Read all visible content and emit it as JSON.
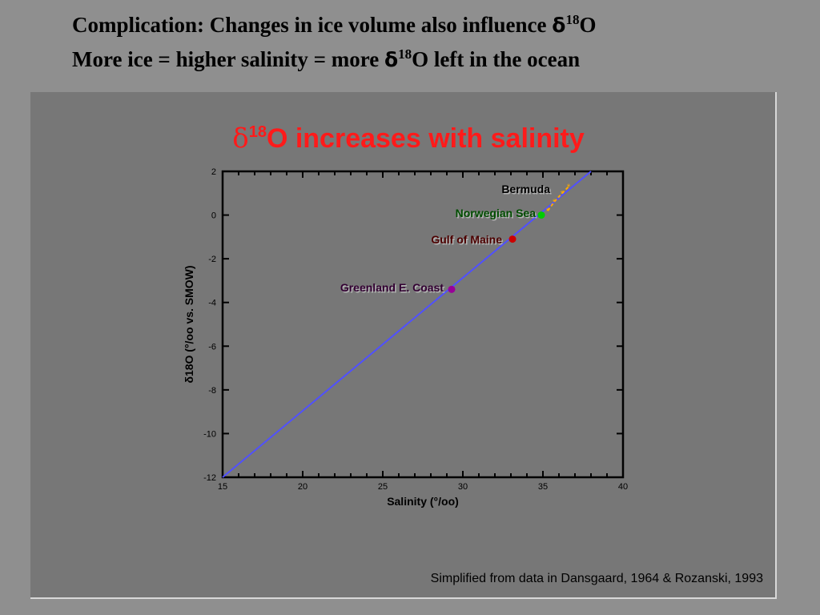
{
  "slide": {
    "title_line1_prefix": "Complication: Changes in ice volume also influence ",
    "title_line1_delta": "δ",
    "title_line1_sup": "18",
    "title_line1_suffix": "O",
    "title_line2_prefix": "More ice = higher salinity = more ",
    "title_line2_delta": "δ",
    "title_line2_sup": "18",
    "title_line2_suffix": "O left in the ocean"
  },
  "figure": {
    "title_delta": "δ",
    "title_sup": "18",
    "title_rest": "O increases with salinity",
    "title_color": "#ff1a1a",
    "caption": "Simplified from data in Dansgaard, 1964 & Rozanski, 1993"
  },
  "chart_data": {
    "type": "scatter",
    "xlabel": "Salinity (°/oo)",
    "ylabel": "δ18O (°/oo vs. SMOW)",
    "xlim": [
      15,
      40
    ],
    "ylim": [
      -12,
      2
    ],
    "xticks": [
      15,
      20,
      25,
      30,
      35,
      40
    ],
    "yticks": [
      2,
      0,
      -2,
      -4,
      -6,
      -8,
      -10,
      -12
    ],
    "grid": false,
    "line": {
      "x": [
        15,
        38
      ],
      "y": [
        -12,
        2
      ],
      "color": "#5050ff"
    },
    "series": [
      {
        "name": "Bermuda",
        "x": [
          35.3,
          35.7,
          36.2,
          36.6
        ],
        "y": [
          0.2,
          0.6,
          1.0,
          1.3
        ],
        "color": "#ffaa00",
        "label_color": "#000000"
      },
      {
        "name": "Norwegian Sea",
        "x": [
          34.9
        ],
        "y": [
          0.0
        ],
        "color": "#00cc00",
        "label_color": "#004d00"
      },
      {
        "name": "Gulf of Maine",
        "x": [
          33.1
        ],
        "y": [
          -1.1
        ],
        "color": "#cc0000",
        "label_color": "#4d0000"
      },
      {
        "name": "Greenland E. Coast",
        "x": [
          29.3
        ],
        "y": [
          -3.4
        ],
        "color": "#990099",
        "label_color": "#330033"
      }
    ]
  }
}
